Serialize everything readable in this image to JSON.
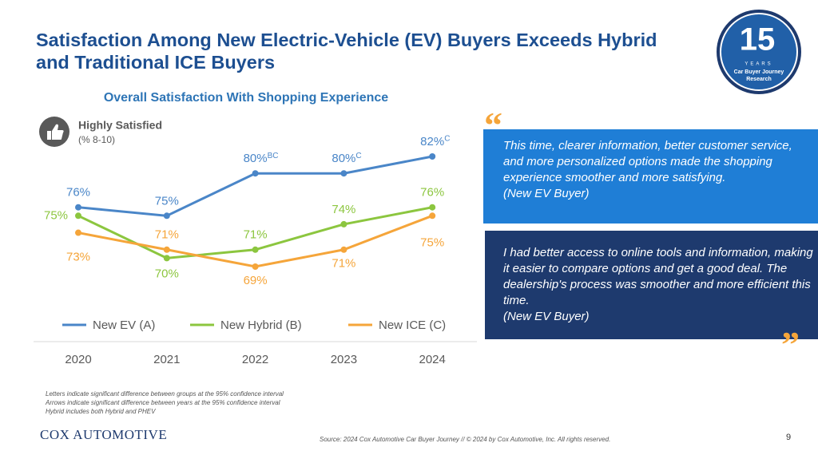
{
  "header": {
    "title": "Satisfaction Among New Electric-Vehicle (EV) Buyers Exceeds Hybrid and Traditional ICE Buyers"
  },
  "badge": {
    "number": "15",
    "years": "YEARS",
    "line1": "Car Buyer Journey",
    "line2": "Research"
  },
  "chart_data": {
    "type": "line",
    "title": "Overall Satisfaction With Shopping Experience",
    "measure": "Highly Satisfied",
    "measure_note": "(% 8-10)",
    "categories": [
      "2020",
      "2021",
      "2022",
      "2023",
      "2024"
    ],
    "series": [
      {
        "name": "New EV (A)",
        "color": "#4a86c8",
        "values": [
          76,
          75,
          80,
          80,
          82
        ],
        "value_labels": [
          "76%",
          "75%",
          "80%",
          "80%",
          "82%"
        ],
        "significance": [
          null,
          null,
          "BC",
          "C",
          "C"
        ]
      },
      {
        "name": "New Hybrid (B)",
        "color": "#8cc63f",
        "values": [
          75,
          70,
          71,
          74,
          76
        ],
        "value_labels": [
          "75%",
          "70%",
          "71%",
          "74%",
          "76%"
        ]
      },
      {
        "name": "New ICE (C)",
        "color": "#f5a53a",
        "values": [
          73,
          71,
          69,
          71,
          75
        ],
        "value_labels": [
          "73%",
          "71%",
          "69%",
          "71%",
          "75%"
        ]
      }
    ]
  },
  "quotes": {
    "open_mark": "“",
    "close_mark": "”",
    "items": [
      {
        "text": "This time, clearer information, better customer service, and more personalized options made the shopping experience smoother and more satisfying.",
        "attribution": "(New EV Buyer)"
      },
      {
        "text": "I had better access to online tools and information, making it easier to compare options and get a good deal. The dealership's process was smoother and more efficient this time.",
        "attribution": "(New EV Buyer)"
      }
    ]
  },
  "footnotes": [
    "Letters indicate significant difference between groups at the 95% confidence interval",
    "Arrows indicate significant difference between years at the 95% confidence interval",
    "Hybrid includes both Hybrid and PHEV"
  ],
  "logo": "COX AUTOMOTIVE",
  "source": "Source: 2024 Cox Automotive Car Buyer Journey // © 2024 by Cox Automotive, Inc. All rights reserved.",
  "page_number": "9"
}
